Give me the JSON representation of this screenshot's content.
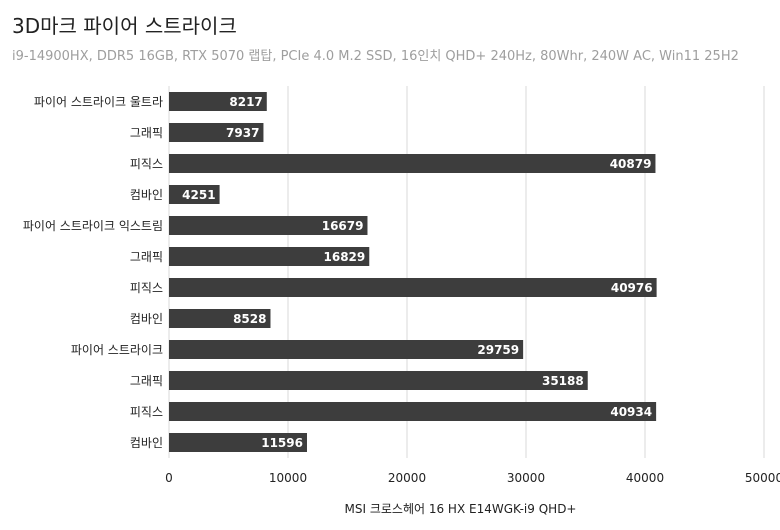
{
  "header": {
    "title": "3D마크 파이어 스트라이크",
    "subtitle": "i9-14900HX, DDR5 16GB, RTX 5070 랩탑, PCIe 4.0 M.2 SSD, 16인치 QHD+ 240Hz, 80Whr, 240W AC, Win11 25H2"
  },
  "colors": {
    "bar": "#3d3d3d",
    "bar_label": "#ffffff",
    "grid": "#d9d9d9",
    "axis_text": "#222222",
    "title": "#222222",
    "subtitle": "#9e9e9e"
  },
  "chart_data": {
    "type": "bar",
    "orientation": "horizontal",
    "title": "3D마크 파이어 스트라이크",
    "subtitle": "i9-14900HX, DDR5 16GB, RTX 5070 랩탑, PCIe 4.0 M.2 SSD, 16인치 QHD+ 240Hz, 80Whr, 240W AC, Win11 25H2",
    "xlabel": "MSI 크로스헤어 16 HX E14WGK-i9 QHD+",
    "ylabel": "",
    "categories": [
      "파이어 스트라이크 울트라",
      "그래픽",
      "피직스",
      "컴바인",
      "파이어 스트라이크 익스트림",
      "그래픽",
      "피직스",
      "컴바인",
      "파이어 스트라이크",
      "그래픽",
      "피직스",
      "컴바인"
    ],
    "values": [
      8217,
      7937,
      40879,
      4251,
      16679,
      16829,
      40976,
      8528,
      29759,
      35188,
      40934,
      11596
    ],
    "xlim": [
      0,
      50000
    ],
    "xticks": [
      "0",
      "10000",
      "20000",
      "30000",
      "40000",
      "50000"
    ],
    "grid": true,
    "legend": "none",
    "data_labels": true
  }
}
